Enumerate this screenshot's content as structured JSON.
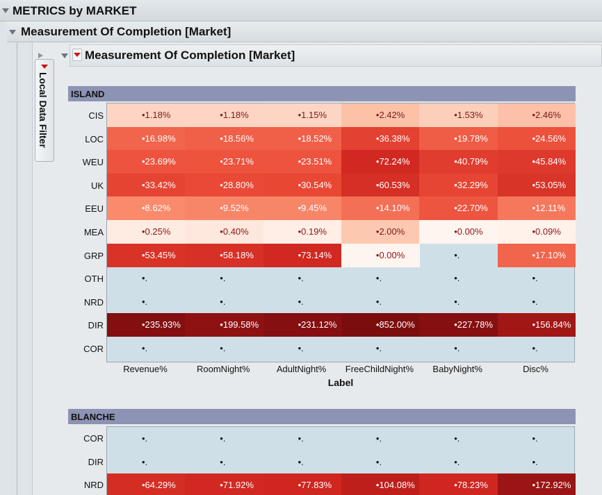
{
  "outline_title": "METRICS by MARKET",
  "sub_title": "Measurement Of Completion [Market]",
  "inner_title": "Measurement Of Completion [Market]",
  "local_filter_label": "Local Data Filter",
  "x_axis_title": "Label",
  "columns": [
    "Revenue%",
    "RoomNight%",
    "AdultNight%",
    "FreeChildNight%",
    "BabyNight%",
    "Disc%"
  ],
  "colors": {
    "header_band": "#8d93b4",
    "empty_cell": "#cfdfe7",
    "max_dark": "#7c0d0f"
  },
  "groups": [
    {
      "name": "ISLAND",
      "rows": [
        {
          "label": "CIS",
          "cells": [
            "•1.18%",
            "•1.18%",
            "•1.15%",
            "•2.42%",
            "•1.53%",
            "•2.46%"
          ],
          "values": [
            1.18,
            1.18,
            1.15,
            2.42,
            1.53,
            2.46
          ]
        },
        {
          "label": "LOC",
          "cells": [
            "•16.98%",
            "•18.56%",
            "•18.52%",
            "•36.38%",
            "•19.78%",
            "•24.56%"
          ],
          "values": [
            16.98,
            18.56,
            18.52,
            36.38,
            19.78,
            24.56
          ]
        },
        {
          "label": "WEU",
          "cells": [
            "•23.69%",
            "•23.71%",
            "•23.51%",
            "•72.24%",
            "•40.79%",
            "•45.84%"
          ],
          "values": [
            23.69,
            23.71,
            23.51,
            72.24,
            40.79,
            45.84
          ]
        },
        {
          "label": "UK",
          "cells": [
            "•33.42%",
            "•28.80%",
            "•30.54%",
            "•60.53%",
            "•32.29%",
            "•53.05%"
          ],
          "values": [
            33.42,
            28.8,
            30.54,
            60.53,
            32.29,
            53.05
          ]
        },
        {
          "label": "EEU",
          "cells": [
            "•8.62%",
            "•9.52%",
            "•9.45%",
            "•14.10%",
            "•22.70%",
            "•12.11%"
          ],
          "values": [
            8.62,
            9.52,
            9.45,
            14.1,
            22.7,
            12.11
          ]
        },
        {
          "label": "MEA",
          "cells": [
            "•0.25%",
            "•0.40%",
            "•0.19%",
            "•2.00%",
            "•0.00%",
            "•0.09%"
          ],
          "values": [
            0.25,
            0.4,
            0.19,
            2.0,
            0.0,
            0.09
          ]
        },
        {
          "label": "GRP",
          "cells": [
            "•53.45%",
            "•58.18%",
            "•73.14%",
            "•0.00%",
            "•.",
            "•17.10%"
          ],
          "values": [
            53.45,
            58.18,
            73.14,
            0.0,
            null,
            17.1
          ]
        },
        {
          "label": "OTH",
          "cells": [
            "•.",
            "•.",
            "•.",
            "•.",
            "•.",
            "•."
          ],
          "values": [
            null,
            null,
            null,
            null,
            null,
            null
          ]
        },
        {
          "label": "NRD",
          "cells": [
            "•.",
            "•.",
            "•.",
            "•.",
            "•.",
            "•."
          ],
          "values": [
            null,
            null,
            null,
            null,
            null,
            null
          ]
        },
        {
          "label": "DIR",
          "cells": [
            "•235.93%",
            "•199.58%",
            "•231.12%",
            "•852.00%",
            "•227.78%",
            "•156.84%"
          ],
          "values": [
            235.93,
            199.58,
            231.12,
            852.0,
            227.78,
            156.84
          ]
        },
        {
          "label": "COR",
          "cells": [
            "•.",
            "•.",
            "•.",
            "•.",
            "•.",
            "•."
          ],
          "values": [
            null,
            null,
            null,
            null,
            null,
            null
          ]
        }
      ]
    },
    {
      "name": "BLANCHE",
      "rows": [
        {
          "label": "COR",
          "cells": [
            "•.",
            "•.",
            "•.",
            "•.",
            "•.",
            "•."
          ],
          "values": [
            null,
            null,
            null,
            null,
            null,
            null
          ]
        },
        {
          "label": "DIR",
          "cells": [
            "•.",
            "•.",
            "•.",
            "•.",
            "•.",
            "•."
          ],
          "values": [
            null,
            null,
            null,
            null,
            null,
            null
          ]
        },
        {
          "label": "NRD",
          "cells": [
            "•64.29%",
            "•71.92%",
            "•77.83%",
            "•104.08%",
            "•78.23%",
            "•172.92%"
          ],
          "values": [
            64.29,
            71.92,
            77.83,
            104.08,
            78.23,
            172.92
          ]
        }
      ]
    }
  ]
}
